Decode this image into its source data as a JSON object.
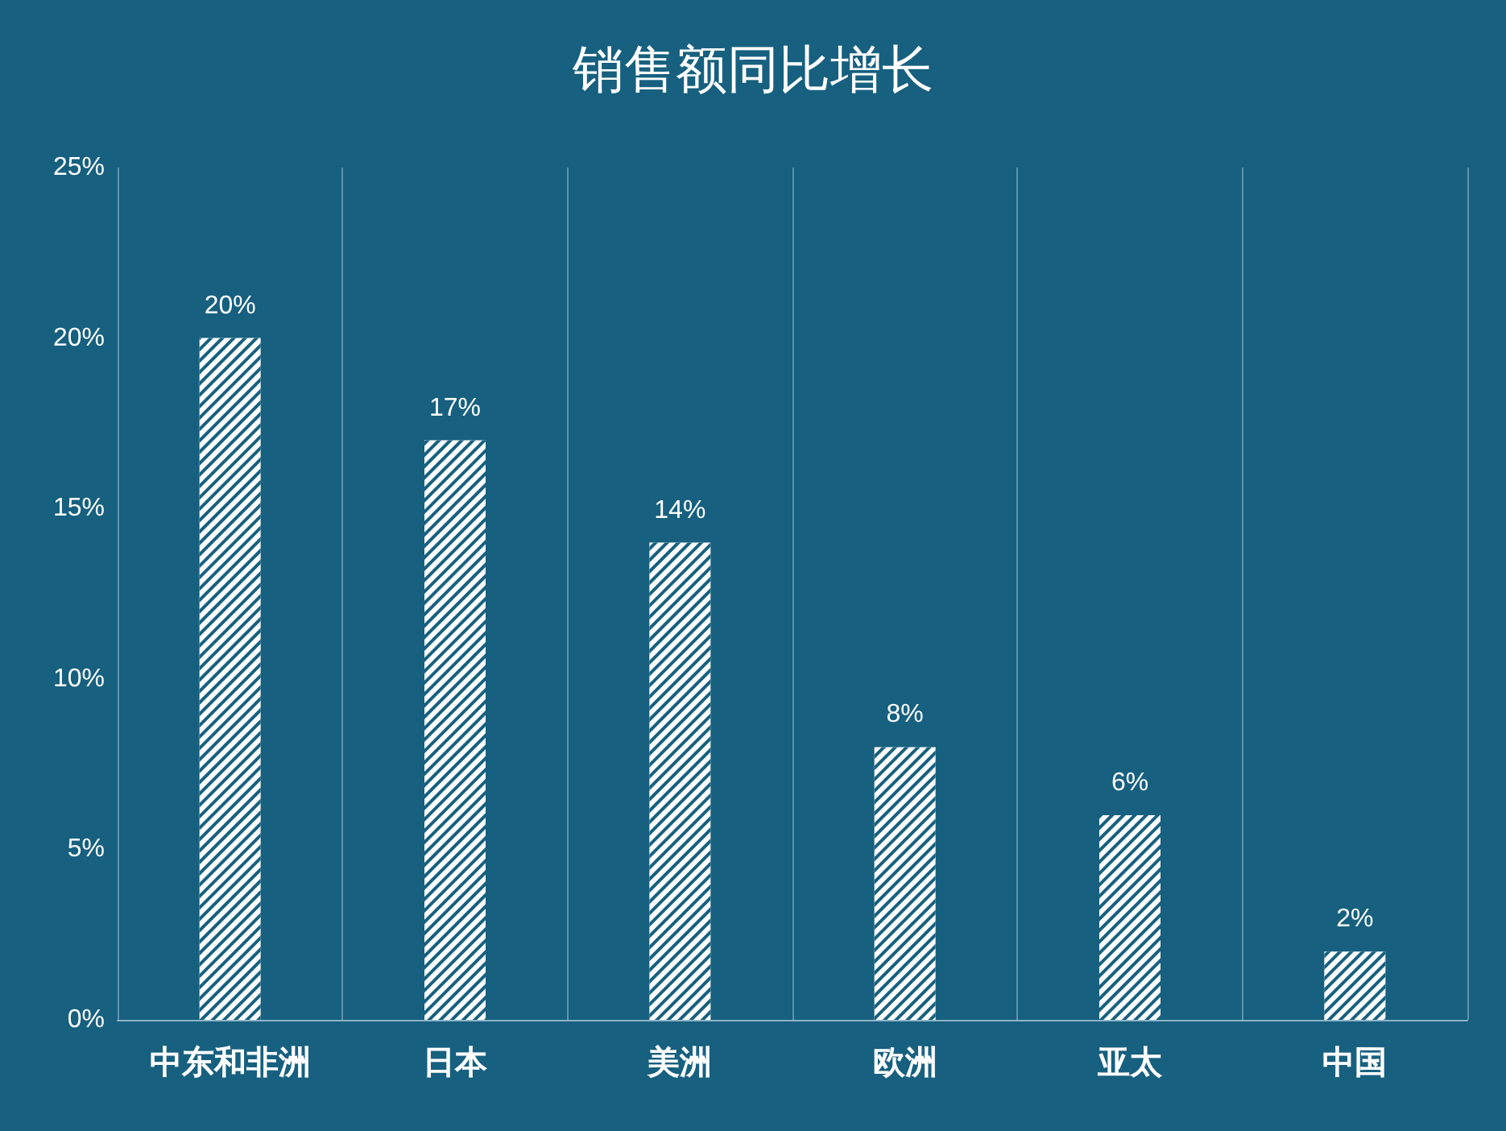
{
  "chart_data": {
    "type": "bar",
    "title": "销售额同比增长",
    "categories": [
      "中东和非洲",
      "日本",
      "美洲",
      "欧洲",
      "亚太",
      "中国"
    ],
    "values": [
      20,
      17,
      14,
      8,
      6,
      2
    ],
    "value_labels": [
      "20%",
      "17%",
      "14%",
      "8%",
      "6%",
      "2%"
    ],
    "color": "#ffffff",
    "ylim": [
      0,
      25
    ],
    "yticks": [
      {
        "value": 0,
        "label": "0%"
      },
      {
        "value": 5,
        "label": "5%"
      },
      {
        "value": 10,
        "label": "10%"
      },
      {
        "value": 15,
        "label": "15%"
      },
      {
        "value": 20,
        "label": "20%"
      },
      {
        "value": 25,
        "label": "25%"
      }
    ],
    "grid": "x"
  }
}
